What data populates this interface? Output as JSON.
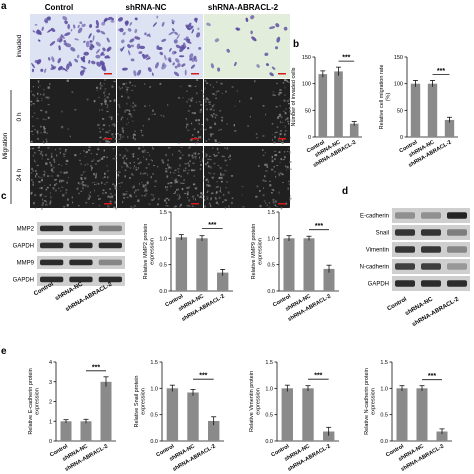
{
  "panel_letters": {
    "a": "a",
    "b": "b",
    "c": "c",
    "d": "d",
    "e": "e"
  },
  "columns": [
    "Control",
    "shRNA-NC",
    "shRNA-ABRACL-2"
  ],
  "rows": {
    "invaded": "invaded",
    "t0": "0 h",
    "t24": "24 h",
    "migration": "Migration"
  },
  "colors": {
    "bar": "#8a8a8a",
    "invaded_bg": "#dde3f2",
    "invaded_bg_kd": "#e3eddc",
    "cell_stain": "#5a4aa0",
    "wound_dark": "#202020",
    "wound_cells": "#8c8c8c",
    "scale_bar": "#d41c1c",
    "blot_band": "#1a1a1a",
    "blot_bg": "#cfcfcf"
  },
  "blot_c": {
    "labels": [
      "MMP2",
      "GAPDH",
      "MMP9",
      "GAPDH"
    ],
    "band_intensity": [
      [
        0.9,
        0.9,
        0.45
      ],
      [
        0.9,
        0.9,
        0.9
      ],
      [
        0.9,
        0.9,
        0.4
      ],
      [
        0.9,
        0.9,
        0.9
      ]
    ]
  },
  "blot_d": {
    "labels": [
      "E-cadherin",
      "Snail",
      "Vimentin",
      "N-cadherin",
      "GAPDH"
    ],
    "band_intensity": [
      [
        0.35,
        0.35,
        0.95
      ],
      [
        0.85,
        0.85,
        0.45
      ],
      [
        0.85,
        0.85,
        0.4
      ],
      [
        0.8,
        0.8,
        0.3
      ],
      [
        0.9,
        0.9,
        0.9
      ]
    ]
  },
  "significance": "***",
  "chart_data": [
    {
      "id": "b1",
      "type": "bar",
      "categories": [
        "Control",
        "shRNA-NC",
        "shRNA-ABRACL-2"
      ],
      "values": [
        118,
        123,
        25
      ],
      "errors": [
        6,
        8,
        4
      ],
      "ylim": [
        0,
        150
      ],
      "ticks": [
        0,
        50,
        100,
        150
      ],
      "xlabel": "",
      "ylabel": "Number of invaded cells"
    },
    {
      "id": "b2",
      "type": "bar",
      "categories": [
        "Control",
        "shRNA-NC",
        "shRNA-ABRACL-2"
      ],
      "values": [
        100,
        100,
        32
      ],
      "errors": [
        6,
        6,
        5
      ],
      "ylim": [
        0,
        150
      ],
      "ticks": [
        0,
        50,
        100,
        150
      ],
      "xlabel": "",
      "ylabel": "Relative cell migration rate (%)"
    },
    {
      "id": "c1",
      "type": "bar",
      "categories": [
        "Control",
        "shRNA-NC",
        "shRNA-ABRACL-2"
      ],
      "values": [
        1.02,
        1.0,
        0.35
      ],
      "errors": [
        0.05,
        0.05,
        0.06
      ],
      "ylim": [
        0,
        1.5
      ],
      "ticks": [
        0.0,
        0.5,
        1.0,
        1.5
      ],
      "xlabel": "",
      "ylabel": "Relative MMP2 protein expression"
    },
    {
      "id": "c2",
      "type": "bar",
      "categories": [
        "Control",
        "shRNA-NC",
        "shRNA-ABRACL-2"
      ],
      "values": [
        1.0,
        1.0,
        0.42
      ],
      "errors": [
        0.05,
        0.04,
        0.07
      ],
      "ylim": [
        0,
        1.5
      ],
      "ticks": [
        0.0,
        0.5,
        1.0,
        1.5
      ],
      "xlabel": "",
      "ylabel": "Relative MMP9 protein expression"
    },
    {
      "id": "e1",
      "type": "bar",
      "categories": [
        "Control",
        "shRNA-NC",
        "shRNA-ABRACL-2"
      ],
      "values": [
        1.0,
        1.0,
        3.0
      ],
      "errors": [
        0.08,
        0.1,
        0.25
      ],
      "ylim": [
        0,
        4
      ],
      "ticks": [
        0,
        1,
        2,
        3,
        4
      ],
      "xlabel": "",
      "ylabel": "Relative E-cadherin protein expression"
    },
    {
      "id": "e2",
      "type": "bar",
      "categories": [
        "Control",
        "shRNA-NC",
        "shRNA-ABRACL-2"
      ],
      "values": [
        1.0,
        0.92,
        0.38
      ],
      "errors": [
        0.06,
        0.06,
        0.08
      ],
      "ylim": [
        0,
        1.5
      ],
      "ticks": [
        0.0,
        0.5,
        1.0,
        1.5
      ],
      "xlabel": "",
      "ylabel": "Relative Snail protein expression"
    },
    {
      "id": "e3",
      "type": "bar",
      "categories": [
        "Control",
        "shRNA-NC",
        "shRNA-ABRACL-2"
      ],
      "values": [
        1.0,
        1.0,
        0.18
      ],
      "errors": [
        0.06,
        0.05,
        0.08
      ],
      "ylim": [
        0,
        1.5
      ],
      "ticks": [
        0.0,
        0.5,
        1.0,
        1.5
      ],
      "xlabel": "",
      "ylabel": "Relative Vimentin protein expression"
    },
    {
      "id": "e4",
      "type": "bar",
      "categories": [
        "Control",
        "shRNA-NC",
        "shRNA-ABRACL-2"
      ],
      "values": [
        1.0,
        1.0,
        0.18
      ],
      "errors": [
        0.05,
        0.05,
        0.05
      ],
      "ylim": [
        0,
        1.5
      ],
      "ticks": [
        0.0,
        0.5,
        1.0,
        1.5
      ],
      "xlabel": "",
      "ylabel": "Relative N-cadherin protein expression"
    }
  ]
}
